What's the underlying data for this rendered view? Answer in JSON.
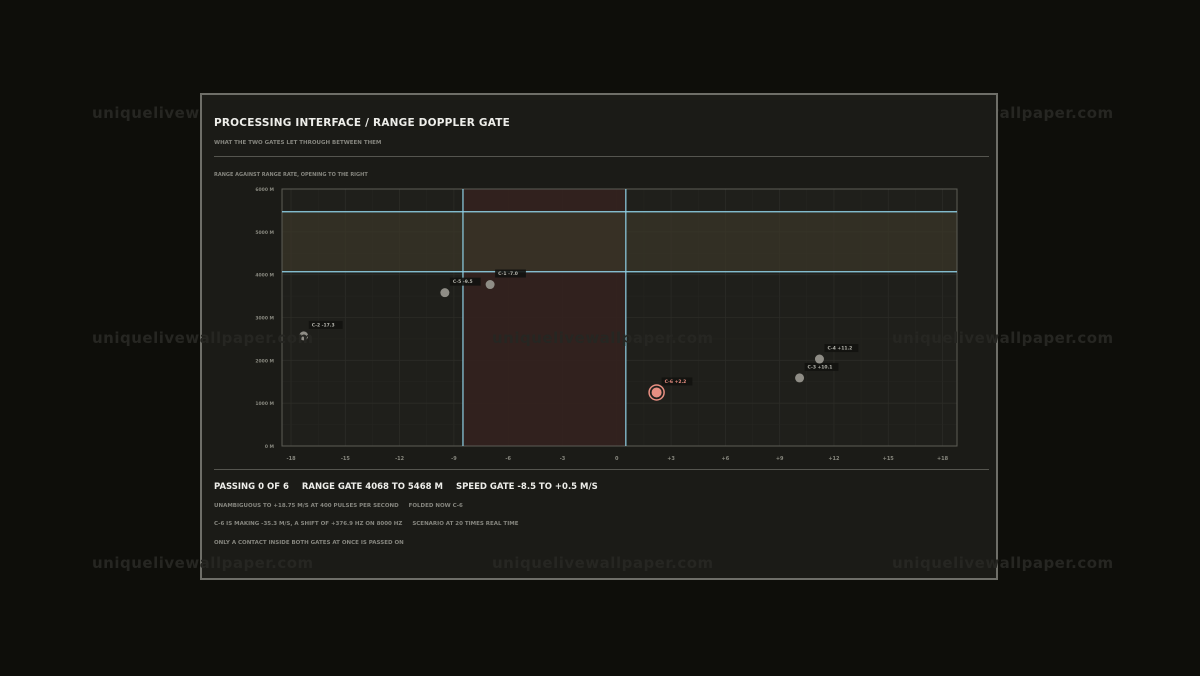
{
  "header": {
    "title": "PROCESSING INTERFACE / RANGE DOPPLER GATE",
    "subtitle": "WHAT THE TWO GATES LET THROUGH BETWEEN THEM"
  },
  "chart_label": "RANGE AGAINST RANGE RATE, OPENING TO THE RIGHT",
  "chart_data": {
    "type": "scatter",
    "x_ticks": [
      "-18",
      "-15",
      "-12",
      "-9",
      "-6",
      "-3",
      "0",
      "+3",
      "+6",
      "+9",
      "+12",
      "+15",
      "+18"
    ],
    "y_ticks": [
      "0 M",
      "1000 M",
      "2000 M",
      "3000 M",
      "4000 M",
      "5000 M",
      "6000 M"
    ],
    "xlim": [
      -18.5,
      18.8
    ],
    "ylim": [
      0,
      6000
    ],
    "grid": true,
    "range_gate": [
      4068,
      5468
    ],
    "speed_gate": [
      -8.5,
      0.5
    ],
    "points": [
      {
        "label": "C-2 -17.3",
        "x": -17.3,
        "y": 2570,
        "state": "outside"
      },
      {
        "label": "C-5 -9.5",
        "x": -9.5,
        "y": 3580,
        "state": "outside"
      },
      {
        "label": "C-1 -7.0",
        "x": -7.0,
        "y": 3770,
        "state": "outside"
      },
      {
        "label": "C-6 +2.2",
        "x": 2.2,
        "y": 1250,
        "state": "selected"
      },
      {
        "label": "C-3 +10.1",
        "x": 10.1,
        "y": 1590,
        "state": "outside"
      },
      {
        "label": "C-4 +11.2",
        "x": 11.2,
        "y": 2030,
        "state": "outside"
      }
    ]
  },
  "stats": {
    "passing": "PASSING 0 OF 6",
    "range_gate": "RANGE GATE 4068 TO 5468 M",
    "speed_gate": "SPEED GATE  -8.5 TO  +0.5 M/S"
  },
  "notes": {
    "ambiguity": "UNAMBIGUOUS TO +18.75 M/S AT 400 PULSES PER SECOND",
    "folded": "FOLDED NOW C-6",
    "doppler": "C-6 IS MAKING -35.3 M/S, A SHIFT OF +376.9 HZ ON 8000 HZ",
    "scenario": "SCENARIO AT 20 TIMES REAL TIME",
    "rule": "ONLY A CONTACT INSIDE BOTH GATES AT ONCE IS PASSED ON"
  },
  "watermark": "uniquelivewallpaper.com",
  "colors": {
    "background": "#0e0e0a",
    "panel": "#1b1b17",
    "gate_line": "#8fd0e6",
    "range_band": "#3a3528",
    "speed_band": "#33211f",
    "point": "#8f8d86",
    "selected_point": "#e88f82"
  }
}
